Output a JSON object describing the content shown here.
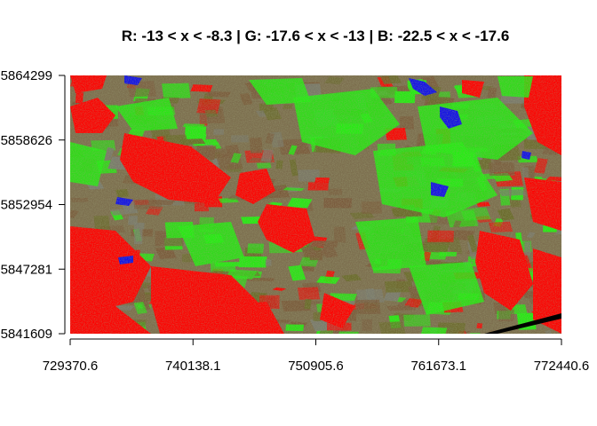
{
  "title": "R: -13 < x < -8.3 | G: -17.6 < x < -13 | B: -22.5 < x < -17.6",
  "x_axis": {
    "ticks": [
      "729370.6",
      "740138.1",
      "750905.6",
      "761673.1",
      "772440.6"
    ],
    "range": [
      729370.6,
      772440.6
    ]
  },
  "y_axis": {
    "ticks": [
      "5841609",
      "5847281",
      "5852954",
      "5858626",
      "5864299"
    ],
    "range": [
      5841609,
      5864299
    ]
  },
  "composite": {
    "red_band_range": "-13 < x < -8.3",
    "green_band_range": "-17.6 < x < -13",
    "blue_band_range": "-22.5 < x < -17.6"
  },
  "colors": {
    "red": "#ff0000",
    "green": "#22ee10",
    "blue": "#1010e8",
    "olive": "#6a6a2a",
    "brown": "#7a5a3c",
    "grey": "#7a7a6e",
    "black": "#000000"
  }
}
